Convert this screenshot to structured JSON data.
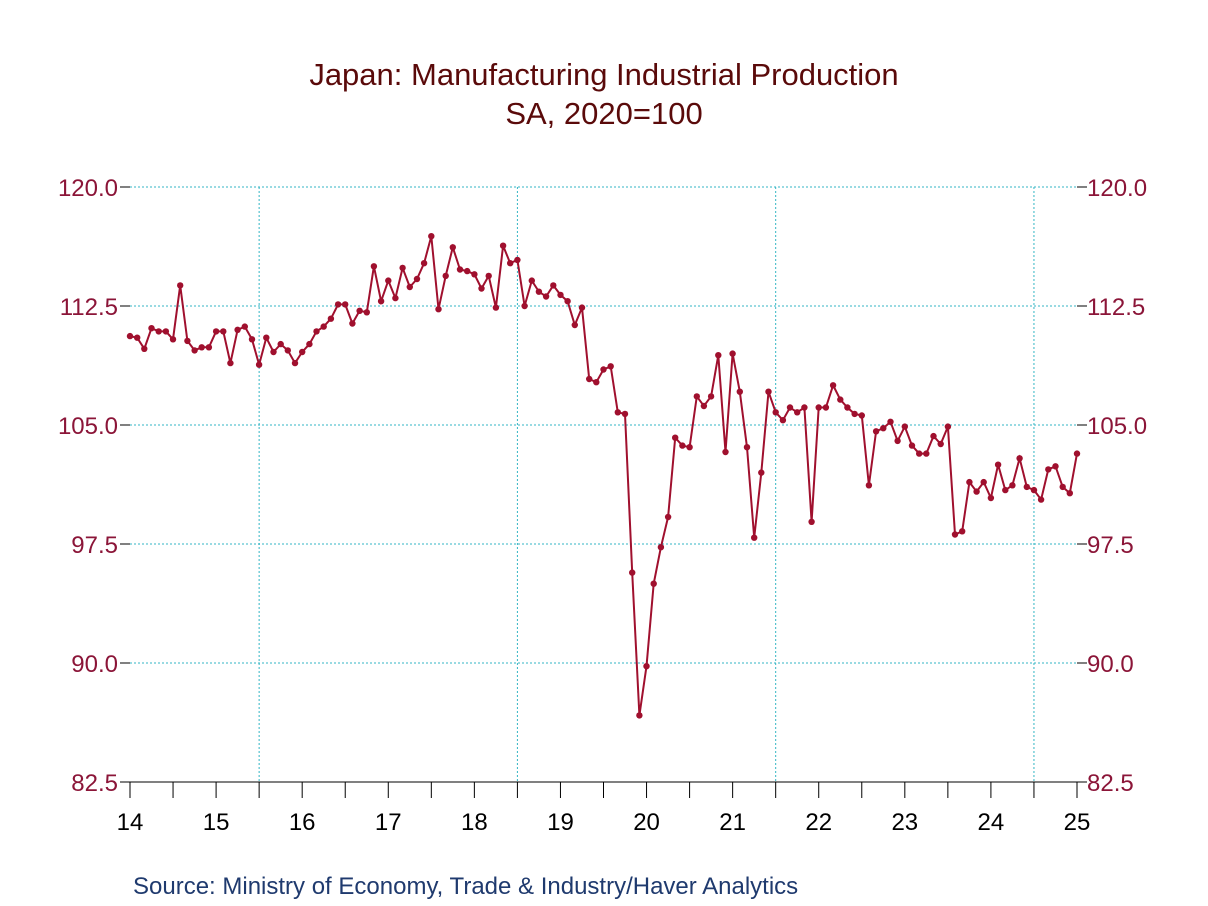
{
  "chart_data": {
    "type": "line",
    "title": "Japan: Manufacturing Industrial Production",
    "subtitle": "SA, 2020=100",
    "source": "Source:  Ministry of Economy, Trade & Industry/Haver Analytics",
    "ylim": [
      82.5,
      120.0
    ],
    "y_ticks": [
      "120.0",
      "112.5",
      "105.0",
      "97.5",
      "90.0",
      "82.5"
    ],
    "x_ticks": [
      "14",
      "15",
      "16",
      "17",
      "18",
      "19",
      "20",
      "21",
      "22",
      "23",
      "24",
      "25"
    ],
    "xlim": [
      2014.0,
      2025.0
    ],
    "grid": true,
    "colors": {
      "series": "#a0102e",
      "grid": "#33b6c4",
      "axis": "#000000"
    },
    "series": [
      {
        "values": [
          110.6,
          110.5,
          109.8,
          111.1,
          110.9,
          110.9,
          110.4,
          113.8,
          110.3,
          109.7,
          109.9,
          109.9,
          110.9,
          110.9,
          108.9,
          111.0,
          111.2,
          110.4,
          108.8,
          110.5,
          109.6,
          110.1,
          109.7,
          108.9,
          109.6,
          110.1,
          110.9,
          111.2,
          111.7,
          112.6,
          112.6,
          111.4,
          112.2,
          112.1,
          115.0,
          112.8,
          114.1,
          113.0,
          114.9,
          113.7,
          114.2,
          115.2,
          116.9,
          112.3,
          114.4,
          116.2,
          114.8,
          114.7,
          114.5,
          113.6,
          114.4,
          112.4,
          116.3,
          115.2,
          115.4,
          112.5,
          114.1,
          113.4,
          113.1,
          113.8,
          113.2,
          112.8,
          111.3,
          112.4,
          107.9,
          107.7,
          108.5,
          108.7,
          105.8,
          105.7,
          95.7,
          86.7,
          89.8,
          95.0,
          97.3,
          99.2,
          104.2,
          103.7,
          103.6,
          106.8,
          106.2,
          106.8,
          109.4,
          103.3,
          109.5,
          107.1,
          103.6,
          97.9,
          102.0,
          107.1,
          105.8,
          105.3,
          106.1,
          105.8,
          106.1,
          98.9,
          106.1,
          106.1,
          107.5,
          106.6,
          106.1,
          105.7,
          105.6,
          101.2,
          104.6,
          104.8,
          105.2,
          104.0,
          104.9,
          103.7,
          103.2,
          103.2,
          104.3,
          103.8,
          104.9,
          98.1,
          98.3,
          101.4,
          100.8,
          101.4,
          100.4,
          102.5,
          100.9,
          101.2,
          102.9,
          101.1,
          100.9,
          100.3,
          102.2,
          102.4,
          101.1,
          100.7,
          103.2
        ]
      }
    ]
  }
}
